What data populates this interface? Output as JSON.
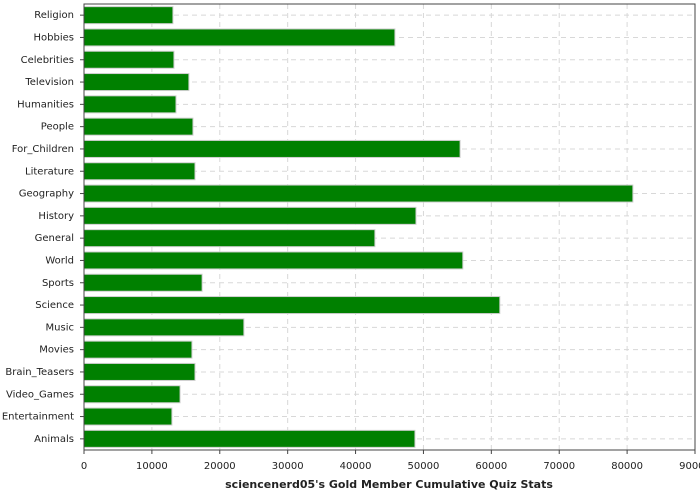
{
  "chart_data": {
    "type": "bar",
    "orientation": "horizontal",
    "x_label": "sciencenerd05's Gold Member Cumulative Quiz Stats",
    "categories": [
      "Religion",
      "Hobbies",
      "Celebrities",
      "Television",
      "Humanities",
      "People",
      "For_Children",
      "Literature",
      "Geography",
      "History",
      "General",
      "World",
      "Sports",
      "Science",
      "Music",
      "Movies",
      "Brain_Teasers",
      "Video_Games",
      "Entertainment",
      "Animals"
    ],
    "values": [
      13100,
      45800,
      13250,
      15450,
      13550,
      16050,
      55400,
      16350,
      80850,
      48900,
      42850,
      55800,
      17400,
      61250,
      23550,
      15900,
      16350,
      14150,
      12950,
      48750
    ],
    "color": "#008000",
    "xlim": [
      0,
      90000
    ],
    "xticks": [
      0,
      10000,
      20000,
      30000,
      40000,
      50000,
      60000,
      70000,
      80000,
      90000
    ],
    "grid": true
  }
}
